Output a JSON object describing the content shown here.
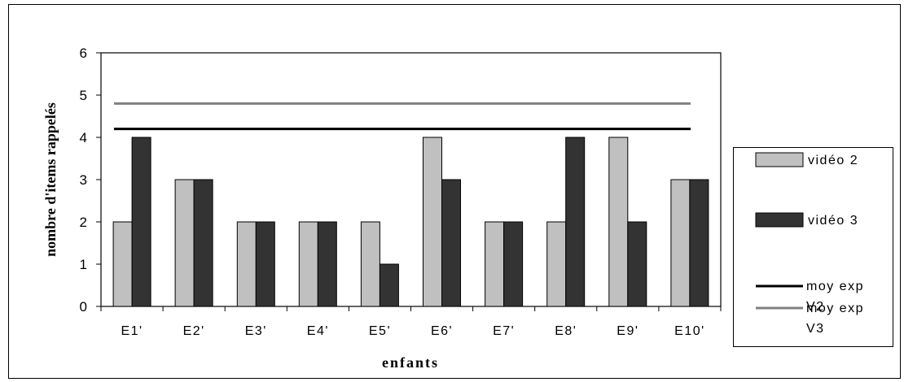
{
  "chart_data": {
    "type": "bar",
    "categories": [
      "E1'",
      "E2'",
      "E3'",
      "E4'",
      "E5'",
      "E6'",
      "E7'",
      "E8'",
      "E9'",
      "E10'"
    ],
    "series": [
      {
        "name": "vidéo 2",
        "values": [
          2,
          3,
          2,
          2,
          2,
          4,
          2,
          2,
          4,
          3
        ],
        "color": "#c0c0c0"
      },
      {
        "name": "vidéo 3",
        "values": [
          4,
          3,
          2,
          2,
          1,
          3,
          2,
          4,
          2,
          3
        ],
        "color": "#333333"
      }
    ],
    "reference_lines": [
      {
        "name_lines": [
          "moy exp",
          "V2"
        ],
        "value": 4.2,
        "color": "#000000"
      },
      {
        "name_lines": [
          "moy exp",
          "V3"
        ],
        "value": 4.8,
        "color": "#808080"
      }
    ],
    "xlabel": "enfants",
    "ylabel": "nombre d'items rappelés",
    "ylim": [
      0,
      6
    ],
    "yticks": [
      0,
      1,
      2,
      3,
      4,
      5,
      6
    ],
    "grid": false,
    "legend_position": "right"
  }
}
